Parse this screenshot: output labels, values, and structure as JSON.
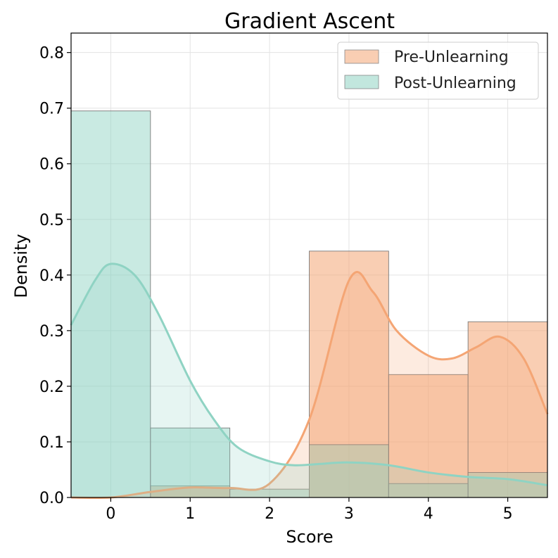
{
  "chart_data": {
    "type": "bar",
    "title": "Gradient Ascent",
    "xlabel": "Score",
    "ylabel": "Density",
    "categories": [
      0,
      1,
      2,
      3,
      4,
      5
    ],
    "x_ticks": [
      "0",
      "1",
      "2",
      "3",
      "4",
      "5"
    ],
    "y_ticks": [
      "0.0",
      "0.1",
      "0.2",
      "0.3",
      "0.4",
      "0.5",
      "0.6",
      "0.7",
      "0.8"
    ],
    "xlim": [
      -0.5,
      5.5
    ],
    "ylim": [
      0,
      0.835
    ],
    "grid": true,
    "legend_position": "top-right",
    "series": [
      {
        "name": "Pre-Unlearning",
        "color": "#f4a574",
        "values": [
          0.0,
          0.021,
          0.0,
          0.443,
          0.221,
          0.316
        ],
        "kde": [
          [
            -0.5,
            0.0
          ],
          [
            0.0,
            0.0
          ],
          [
            0.5,
            0.01
          ],
          [
            1.0,
            0.018
          ],
          [
            1.5,
            0.017
          ],
          [
            2.0,
            0.025
          ],
          [
            2.5,
            0.14
          ],
          [
            3.0,
            0.39
          ],
          [
            3.3,
            0.37
          ],
          [
            3.6,
            0.3
          ],
          [
            4.0,
            0.255
          ],
          [
            4.3,
            0.25
          ],
          [
            4.6,
            0.27
          ],
          [
            4.9,
            0.289
          ],
          [
            5.2,
            0.25
          ],
          [
            5.5,
            0.15
          ]
        ]
      },
      {
        "name": "Post-Unlearning",
        "color": "#8fd3c3",
        "values": [
          0.695,
          0.125,
          0.015,
          0.095,
          0.025,
          0.045
        ],
        "kde": [
          [
            -0.5,
            0.31
          ],
          [
            -0.2,
            0.39
          ],
          [
            0.0,
            0.42
          ],
          [
            0.3,
            0.4
          ],
          [
            0.6,
            0.33
          ],
          [
            1.0,
            0.21
          ],
          [
            1.3,
            0.14
          ],
          [
            1.6,
            0.09
          ],
          [
            2.0,
            0.065
          ],
          [
            2.3,
            0.058
          ],
          [
            2.6,
            0.06
          ],
          [
            3.0,
            0.063
          ],
          [
            3.5,
            0.058
          ],
          [
            4.0,
            0.045
          ],
          [
            4.5,
            0.037
          ],
          [
            5.0,
            0.033
          ],
          [
            5.5,
            0.022
          ]
        ]
      }
    ]
  }
}
